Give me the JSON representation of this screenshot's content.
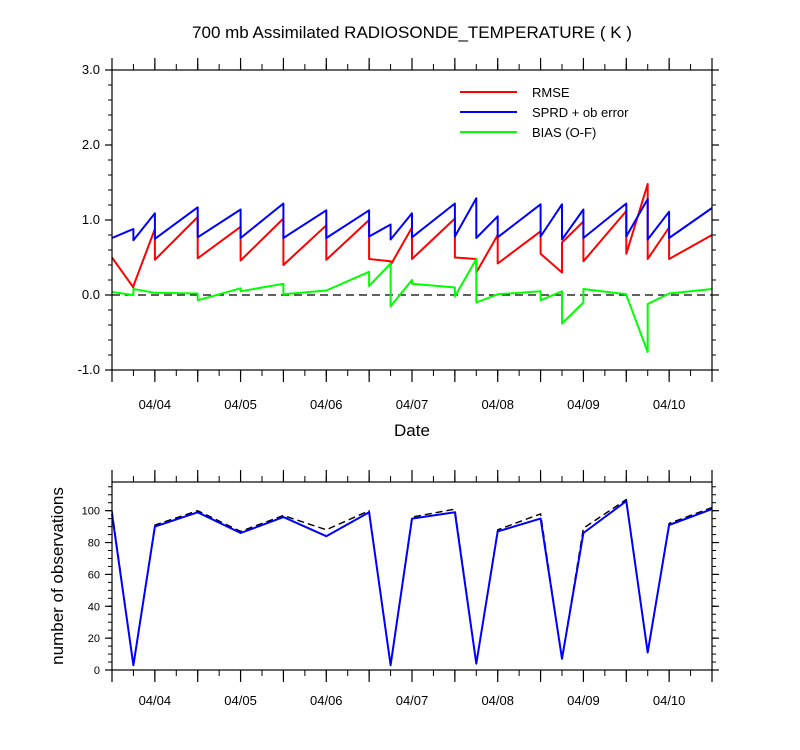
{
  "chart_data": [
    {
      "type": "line",
      "title": "700 mb Assimilated RADIOSONDE_TEMPERATURE ( K )",
      "xlabel": "Date",
      "ylabel": "",
      "ylim": [
        -1.0,
        3.0
      ],
      "yticks": [
        "-1.0",
        "0.0",
        "1.0",
        "2.0",
        "3.0"
      ],
      "xlim": [
        "04/03 12Z",
        "04/10 12Z"
      ],
      "xticks": [
        "04/04",
        "04/05",
        "04/06",
        "04/07",
        "04/08",
        "04/09",
        "04/10"
      ],
      "legend_placement": "top-right",
      "reference_line": {
        "y": 0.0,
        "style": "dashed"
      },
      "series": [
        {
          "name": "RMSE",
          "color": "#ff0000",
          "points": [
            [
              "04/03 12Z",
              0.5
            ],
            [
              "04/03 18Z",
              0.1
            ],
            [
              "04/03 18Z",
              0.12
            ],
            [
              "04/04 00Z",
              0.88
            ],
            [
              "04/04 00Z",
              0.47
            ],
            [
              "04/04 12Z",
              1.04
            ],
            [
              "04/04 12Z",
              0.49
            ],
            [
              "04/05 00Z",
              0.91
            ],
            [
              "04/05 00Z",
              0.46
            ],
            [
              "04/05 12Z",
              1.02
            ],
            [
              "04/05 12Z",
              0.4
            ],
            [
              "04/06 00Z",
              0.93
            ],
            [
              "04/06 00Z",
              0.47
            ],
            [
              "04/06 12Z",
              1.0
            ],
            [
              "04/06 12Z",
              0.48
            ],
            [
              "04/06 18Z",
              0.45
            ],
            [
              "04/06 18Z",
              0.4
            ],
            [
              "04/07 00Z",
              0.9
            ],
            [
              "04/07 00Z",
              0.48
            ],
            [
              "04/07 12Z",
              1.02
            ],
            [
              "04/07 12Z",
              0.5
            ],
            [
              "04/07 18Z",
              0.48
            ],
            [
              "04/07 18Z",
              0.3
            ],
            [
              "04/08 00Z",
              0.8
            ],
            [
              "04/08 00Z",
              0.42
            ],
            [
              "04/08 12Z",
              0.85
            ],
            [
              "04/08 12Z",
              0.55
            ],
            [
              "04/08 18Z",
              0.3
            ],
            [
              "04/08 18Z",
              0.7
            ],
            [
              "04/09 00Z",
              0.98
            ],
            [
              "04/09 00Z",
              0.45
            ],
            [
              "04/09 12Z",
              1.12
            ],
            [
              "04/09 12Z",
              0.55
            ],
            [
              "04/09 18Z",
              1.48
            ],
            [
              "04/09 18Z",
              0.48
            ],
            [
              "04/10 00Z",
              0.9
            ],
            [
              "04/10 00Z",
              0.48
            ],
            [
              "04/10 12Z",
              0.8
            ]
          ]
        },
        {
          "name": "SPRD + ob error",
          "color": "#0000ff",
          "points": [
            [
              "04/03 12Z",
              0.76
            ],
            [
              "04/03 18Z",
              0.88
            ],
            [
              "04/03 18Z",
              0.73
            ],
            [
              "04/04 00Z",
              1.09
            ],
            [
              "04/04 00Z",
              0.75
            ],
            [
              "04/04 12Z",
              1.17
            ],
            [
              "04/04 12Z",
              0.77
            ],
            [
              "04/05 00Z",
              1.14
            ],
            [
              "04/05 00Z",
              0.76
            ],
            [
              "04/05 12Z",
              1.22
            ],
            [
              "04/05 12Z",
              0.76
            ],
            [
              "04/06 00Z",
              1.13
            ],
            [
              "04/06 00Z",
              0.76
            ],
            [
              "04/06 12Z",
              1.13
            ],
            [
              "04/06 12Z",
              0.78
            ],
            [
              "04/06 18Z",
              0.94
            ],
            [
              "04/06 18Z",
              0.74
            ],
            [
              "04/07 00Z",
              1.09
            ],
            [
              "04/07 00Z",
              0.77
            ],
            [
              "04/07 12Z",
              1.22
            ],
            [
              "04/07 12Z",
              0.78
            ],
            [
              "04/07 18Z",
              1.29
            ],
            [
              "04/07 18Z",
              0.76
            ],
            [
              "04/08 00Z",
              1.05
            ],
            [
              "04/08 00Z",
              0.77
            ],
            [
              "04/08 12Z",
              1.21
            ],
            [
              "04/08 12Z",
              0.78
            ],
            [
              "04/08 18Z",
              1.21
            ],
            [
              "04/08 18Z",
              0.74
            ],
            [
              "04/09 00Z",
              1.14
            ],
            [
              "04/09 00Z",
              0.76
            ],
            [
              "04/09 12Z",
              1.22
            ],
            [
              "04/09 12Z",
              0.78
            ],
            [
              "04/09 18Z",
              1.28
            ],
            [
              "04/09 18Z",
              0.74
            ],
            [
              "04/10 00Z",
              1.11
            ],
            [
              "04/10 00Z",
              0.76
            ],
            [
              "04/10 12Z",
              1.16
            ]
          ]
        },
        {
          "name": "BIAS (O-F)",
          "color": "#00ff00",
          "points": [
            [
              "04/03 12Z",
              0.04
            ],
            [
              "04/03 18Z",
              0.0
            ],
            [
              "04/03 18Z",
              0.08
            ],
            [
              "04/04 00Z",
              0.03
            ],
            [
              "04/04 00Z",
              0.03
            ],
            [
              "04/04 12Z",
              0.02
            ],
            [
              "04/04 12Z",
              -0.07
            ],
            [
              "04/05 00Z",
              0.09
            ],
            [
              "04/05 00Z",
              0.05
            ],
            [
              "04/05 12Z",
              0.15
            ],
            [
              "04/05 12Z",
              0.01
            ],
            [
              "04/06 00Z",
              0.06
            ],
            [
              "04/06 00Z",
              0.06
            ],
            [
              "04/06 12Z",
              0.31
            ],
            [
              "04/06 12Z",
              0.12
            ],
            [
              "04/06 18Z",
              0.42
            ],
            [
              "04/06 18Z",
              -0.15
            ],
            [
              "04/07 00Z",
              0.2
            ],
            [
              "04/07 00Z",
              0.15
            ],
            [
              "04/07 12Z",
              0.1
            ],
            [
              "04/07 12Z",
              -0.02
            ],
            [
              "04/07 18Z",
              0.48
            ],
            [
              "04/07 18Z",
              -0.1
            ],
            [
              "04/08 00Z",
              0.01
            ],
            [
              "04/08 00Z",
              0.01
            ],
            [
              "04/08 12Z",
              0.05
            ],
            [
              "04/08 12Z",
              -0.07
            ],
            [
              "04/08 18Z",
              0.05
            ],
            [
              "04/08 18Z",
              -0.38
            ],
            [
              "04/09 00Z",
              -0.1
            ],
            [
              "04/09 00Z",
              0.08
            ],
            [
              "04/09 12Z",
              0.01
            ],
            [
              "04/09 12Z",
              0.0
            ],
            [
              "04/09 18Z",
              -0.76
            ],
            [
              "04/09 18Z",
              -0.12
            ],
            [
              "04/10 00Z",
              0.02
            ],
            [
              "04/10 00Z",
              0.02
            ],
            [
              "04/10 12Z",
              0.08
            ]
          ]
        }
      ]
    },
    {
      "type": "line",
      "title": "",
      "xlabel": "",
      "ylabel": "number of observations",
      "ylim": [
        0,
        118
      ],
      "yticks": [
        "0",
        "20",
        "40",
        "60",
        "80",
        "100"
      ],
      "xlim": [
        "04/03 12Z",
        "04/10 12Z"
      ],
      "xticks": [
        "04/04",
        "04/05",
        "04/06",
        "04/07",
        "04/08",
        "04/09",
        "04/10"
      ],
      "x": [
        "04/03 12Z",
        "04/03 18Z",
        "04/04 00Z",
        "04/04 12Z",
        "04/05 00Z",
        "04/05 12Z",
        "04/06 00Z",
        "04/06 12Z",
        "04/06 18Z",
        "04/07 00Z",
        "04/07 12Z",
        "04/07 18Z",
        "04/08 00Z",
        "04/08 12Z",
        "04/08 18Z",
        "04/09 00Z",
        "04/09 12Z",
        "04/09 18Z",
        "04/10 00Z",
        "04/10 12Z"
      ],
      "series": [
        {
          "color": "#0000ff",
          "style": "solid",
          "values": [
            98,
            3,
            90,
            99,
            86,
            96,
            84,
            99,
            3,
            95,
            99,
            4,
            87,
            95,
            7,
            86,
            106,
            11,
            91,
            101
          ]
        },
        {
          "color": "#000000",
          "style": "dashed",
          "values": [
            100,
            3,
            91,
            100,
            87,
            97,
            88,
            100,
            3,
            96,
            101,
            4,
            88,
            98,
            7,
            89,
            107,
            11,
            92,
            102
          ]
        }
      ]
    }
  ]
}
